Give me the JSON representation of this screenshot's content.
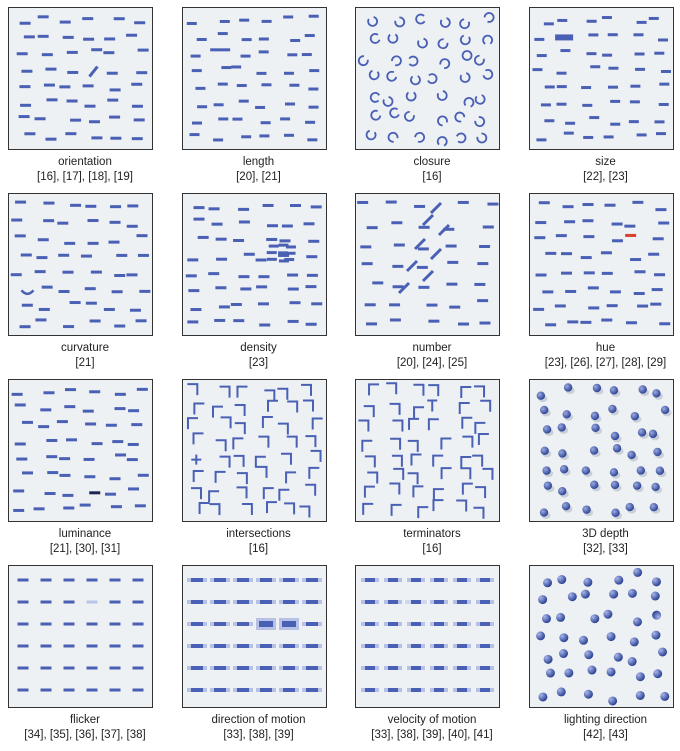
{
  "figure": {
    "panels": [
      {
        "id": "orientation",
        "label": "orientation",
        "refs": "[16], [17], [18], [19]"
      },
      {
        "id": "length",
        "label": "length",
        "refs": "[20], [21]"
      },
      {
        "id": "closure",
        "label": "closure",
        "refs": "[16]"
      },
      {
        "id": "size",
        "label": "size",
        "refs": "[22], [23]"
      },
      {
        "id": "curvature",
        "label": "curvature",
        "refs": "[21]"
      },
      {
        "id": "density",
        "label": "density",
        "refs": "[23]"
      },
      {
        "id": "number",
        "label": "number",
        "refs": "[20], [24], [25]"
      },
      {
        "id": "hue",
        "label": "hue",
        "refs": "[23], [26], [27], [28], [29]"
      },
      {
        "id": "luminance",
        "label": "luminance",
        "refs": "[21], [30], [31]"
      },
      {
        "id": "intersections",
        "label": "intersections",
        "refs": "[16]"
      },
      {
        "id": "terminators",
        "label": "terminators",
        "refs": "[16]"
      },
      {
        "id": "3d-depth",
        "label": "3D depth",
        "refs": "[32], [33]"
      },
      {
        "id": "flicker",
        "label": "flicker",
        "refs": "[34], [35], [36], [37], [38]"
      },
      {
        "id": "direction-of-motion",
        "label": "direction of motion",
        "refs": "[33], [38], [39]"
      },
      {
        "id": "velocity-of-motion",
        "label": "velocity of motion",
        "refs": "[33], [38], [39], [40], [41]"
      },
      {
        "id": "lighting-direction",
        "label": "lighting direction",
        "refs": "[42], [43]"
      }
    ],
    "colors": {
      "element": "#4a60b5",
      "highlight_red": "#d9412c",
      "highlight_dark": "#1c2553",
      "panel_bg": "#eef1f4",
      "border": "#333333"
    }
  }
}
